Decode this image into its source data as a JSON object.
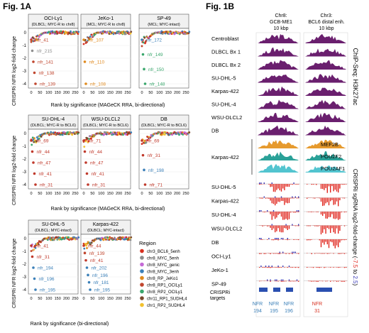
{
  "fig1a": {
    "title": "Fig. 1A",
    "ylabel": "CRISPRi NFR log2-fold change",
    "xlabel_row1": "Rank by significance (MAGeCK RRA, bi-directional)",
    "xlabel_row2": "Rank by significance (MAGeCK RRA, bi-directional)",
    "xlabel_row3": "Rank by significance (bi-directional)",
    "yticks": [
      "0",
      "-1",
      "-2",
      "-3",
      "-4"
    ],
    "xticks": [
      "0",
      "50",
      "100",
      "150",
      "200",
      "250"
    ],
    "panels": [
      {
        "name": "OCI-Ly1",
        "sub": "(DLBCL; MYC-R to chr8)",
        "labels": [
          {
            "t": "nfr_41",
            "c": "#c0462e"
          },
          {
            "t": "nfr_215",
            "c": "#8f8f8f"
          },
          {
            "t": "nfr_141",
            "c": "#c0462e"
          },
          {
            "t": "nfr_138",
            "c": "#c0462e"
          },
          {
            "t": "nfr_139",
            "c": "#c0462e"
          }
        ]
      },
      {
        "name": "JeKo-1",
        "sub": "(MCL; MYC-R to chr8)",
        "labels": [
          {
            "t": "nfr_107",
            "c": "#e08a1e"
          },
          {
            "t": "nfr_110",
            "c": "#e08a1e"
          },
          {
            "t": "nfr_108",
            "c": "#e08a1e"
          }
        ]
      },
      {
        "name": "SP-49",
        "sub": "(MCL; MYC-intact)",
        "labels": [
          {
            "t": "nfr_172",
            "c": "#3a7fb8"
          },
          {
            "t": "nfr_149",
            "c": "#3aa76d"
          },
          {
            "t": "nfr_150",
            "c": "#3aa76d"
          },
          {
            "t": "nfr_148",
            "c": "#3aa76d"
          }
        ]
      },
      {
        "name": "SU-DHL-4",
        "sub": "(DLBCL; MYC-R to BCL6)",
        "labels": [
          {
            "t": "nfr_69",
            "c": "#c0392b"
          },
          {
            "t": "nfr_44",
            "c": "#c0392b"
          },
          {
            "t": "nfr_47",
            "c": "#c0392b"
          },
          {
            "t": "nfr_41",
            "c": "#c0392b"
          },
          {
            "t": "nfr_31",
            "c": "#c0392b"
          }
        ]
      },
      {
        "name": "WSU-DLCL2",
        "sub": "(DLBCL; MYC-R to BCL6)",
        "labels": [
          {
            "t": "nfr_71",
            "c": "#c0392b"
          },
          {
            "t": "nfr_44",
            "c": "#c0392b"
          },
          {
            "t": "nfr_47",
            "c": "#c0392b"
          },
          {
            "t": "nfr_41",
            "c": "#c0392b"
          },
          {
            "t": "nfr_31",
            "c": "#c0392b"
          }
        ]
      },
      {
        "name": "DB",
        "sub": "(DLBCL; MYC-R to BCL6)",
        "labels": [
          {
            "t": "nfr_69",
            "c": "#c0392b"
          },
          {
            "t": "nfr_31",
            "c": "#c0392b"
          },
          {
            "t": "nfr_198",
            "c": "#3a7fb8"
          },
          {
            "t": "nfr_71",
            "c": "#c0392b"
          }
        ]
      },
      {
        "name": "SU-DHL-5",
        "sub": "(DLBCL; MYC-intact)",
        "labels": [
          {
            "t": "nfr_41",
            "c": "#c0392b"
          },
          {
            "t": "nfr_31",
            "c": "#c0392b"
          },
          {
            "t": "nfr_194",
            "c": "#3a7fb8"
          },
          {
            "t": "nfr_196",
            "c": "#3a7fb8"
          },
          {
            "t": "nfr_195",
            "c": "#3a7fb8"
          }
        ]
      },
      {
        "name": "Karpas-422",
        "sub": "(DLBCL; MYC-intact)",
        "labels": [
          {
            "t": "nfr_44",
            "c": "#c0392b"
          },
          {
            "t": "nfr_139",
            "c": "#c0462e"
          },
          {
            "t": "nfr_41",
            "c": "#c0392b"
          },
          {
            "t": "nfr_202",
            "c": "#3a7fb8"
          },
          {
            "t": "nfr_196",
            "c": "#3a7fb8"
          },
          {
            "t": "nfr_181",
            "c": "#3a7fb8"
          },
          {
            "t": "nfr_195",
            "c": "#3a7fb8"
          }
        ]
      }
    ],
    "legend_title": "Region",
    "legend": [
      {
        "name": "chr3_BCL6_5enh",
        "color": "#d7301f"
      },
      {
        "name": "chr8_MYC_5enh",
        "color": "#8c8c8c"
      },
      {
        "name": "chr8_MYC_genic",
        "color": "#c46ad6"
      },
      {
        "name": "chr8_MYC_3enh",
        "color": "#3a7fb8"
      },
      {
        "name": "chr8_RP_JeKo1",
        "color": "#e08a1e"
      },
      {
        "name": "chr8_RP1_OCILy1",
        "color": "#c0462e"
      },
      {
        "name": "chr8_RP2_OCILy1",
        "color": "#3aa76d"
      },
      {
        "name": "chr11_RP1_SUDHL4",
        "color": "#7b4a2e"
      },
      {
        "name": "chr1_RP2_SUDHL4",
        "color": "#f2c12e"
      }
    ]
  },
  "fig1b": {
    "title": "Fig. 1B",
    "col1": {
      "l1": "Chr8:",
      "l2": "GCB-ME1",
      "l3": "10 kbp"
    },
    "col2": {
      "l1": "Chr3:",
      "l2": "BCL6 distal enh.",
      "l3": "10 kbp"
    },
    "chip_label": "ChIP-Seq: H3K27ac",
    "crispr_label": "CRISPRi sgRNA log2-fold-change",
    "range_open": "(",
    "range_low": "-7.5",
    "range_to": " to ",
    "range_high": "2.5",
    "range_close": ")",
    "chip_tracks": [
      "Centroblast",
      "DLBCL Bx 1",
      "DLBCL Bx 2",
      "SU-DHL-5",
      "Karpas-422",
      "SU-DHL-4",
      "WSU-DLCL2",
      "DB"
    ],
    "tf_cell": "Karpas-422",
    "tf_tracks": [
      {
        "name": "MEF2B",
        "color": "#e69a2e"
      },
      {
        "name": "POU2F2",
        "color": "#2aa198"
      },
      {
        "name": "POU2AF1",
        "color": "#52c4cf"
      }
    ],
    "crispr_tracks": [
      "SU-DHL-5",
      "Karpas-422",
      "SU-DHL-4",
      "WSU-DLCL2",
      "DB",
      "OCI-Ly1",
      "JeKo-1",
      "SP-49"
    ],
    "targets_label": "CRISPRi\ntargets",
    "targets_l1": "CRISPRi",
    "targets_l2": "targets",
    "targets": [
      {
        "top": "NFR",
        "num": "194",
        "color": "#3a7fb8"
      },
      {
        "top": "NFR",
        "num": "195",
        "color": "#3a7fb8"
      },
      {
        "top": "NFR",
        "num": "196",
        "color": "#3a7fb8"
      },
      {
        "top": "NFR",
        "num": "31",
        "color": "#d7301f"
      }
    ],
    "colors": {
      "chip": "#6a1f6e",
      "down": "#e0261e",
      "up": "#3b3bb8",
      "target": "#2a4fb0"
    }
  }
}
